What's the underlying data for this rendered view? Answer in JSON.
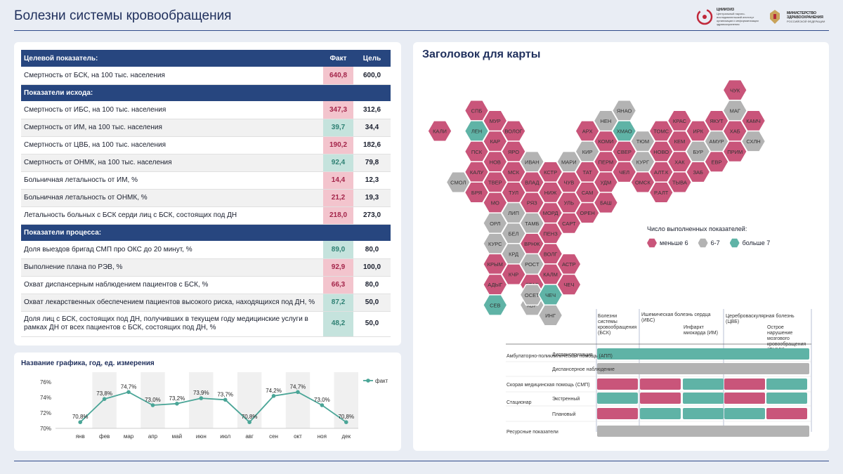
{
  "header": {
    "title": "Болезни системы кровообращения",
    "logo1": {
      "name": "ЦНИИОИЗ",
      "text": "Центральный научно-исследовательский институт организации и информатизации здравоохранения"
    },
    "logo2": {
      "text1": "МИНИСТЕРСТВО",
      "text2": "ЗДРАВООХРАНЕНИЯ",
      "text3": "РОССИЙСКОЙ ФЕДЕРАЦИИ"
    }
  },
  "kpi": {
    "col_fact": "Факт",
    "col_goal": "Цель",
    "target_header": "Целевой показатель:",
    "target": [
      {
        "label": "Смертность от БСК, на 100 тыс. населения",
        "fact": "640,8",
        "goal": "600,0",
        "status": "bad"
      }
    ],
    "outcome_header": "Показатели исхода:",
    "outcome": [
      {
        "label": "Смертность от ИБС, на 100 тыс. населения",
        "fact": "347,3",
        "goal": "312,6",
        "status": "bad"
      },
      {
        "label": "Смертность от ИМ, на 100 тыс. населения",
        "fact": "39,7",
        "goal": "34,4",
        "status": "good"
      },
      {
        "label": "Смертность от ЦВБ, на 100 тыс. населения",
        "fact": "190,2",
        "goal": "182,6",
        "status": "bad"
      },
      {
        "label": "Смертность от ОНМК, на 100 тыс. населения",
        "fact": "92,4",
        "goal": "79,8",
        "status": "good"
      },
      {
        "label": "Больничная летальность от ИМ, %",
        "fact": "14,4",
        "goal": "12,3",
        "status": "bad"
      },
      {
        "label": "Больничная летальность от ОНМК, %",
        "fact": "21,2",
        "goal": "19,3",
        "status": "bad"
      },
      {
        "label": "Летальность больных с БСК серди лиц с БСК, состоящих под ДН",
        "fact": "218,0",
        "goal": "273,0",
        "status": "bad"
      }
    ],
    "process_header": "Показатели процесса:",
    "process": [
      {
        "label": "Доля выездов бригад СМП про ОКС до 20 минут, %",
        "fact": "89,0",
        "goal": "80,0",
        "status": "good"
      },
      {
        "label": "Выполнение плана по РЭВ, %",
        "fact": "92,9",
        "goal": "100,0",
        "status": "bad"
      },
      {
        "label": "Охват диспансерным наблюдением пациентов с БСК, %",
        "fact": "66,3",
        "goal": "80,0",
        "status": "bad"
      },
      {
        "label": "Охват лекарственных обеспечением пациентов высокого риска, находящихся под ДН, %",
        "fact": "87,2",
        "goal": "50,0",
        "status": "good"
      },
      {
        "label": "Доля лиц с БСК, состоящих под ДН, получивших в текущем году медицинские услуги в рамках ДН от всех пациентов с БСК, состоящих под ДН, %",
        "fact": "48,2",
        "goal": "50,0",
        "status": "good"
      }
    ]
  },
  "chart_title": "Название графика, год, ед. измерения",
  "chart_data": {
    "type": "line",
    "categories": [
      "янв",
      "фев",
      "мар",
      "апр",
      "май",
      "июн",
      "июл",
      "авг",
      "сен",
      "окт",
      "ноя",
      "дек"
    ],
    "series": [
      {
        "name": "факт",
        "values": [
          70.8,
          73.8,
          74.7,
          73.0,
          73.2,
          73.9,
          73.7,
          70.8,
          74.2,
          74.7,
          73.0,
          70.8
        ],
        "labels": [
          "70,8%",
          "73,8%",
          "74,7%",
          "73,0%",
          "73,2%",
          "73,9%",
          "73,7%",
          "70,8%",
          "74,2%",
          "74,7%",
          "73,0%",
          "70,8%"
        ]
      }
    ],
    "yticks": [
      "70%",
      "72%",
      "74%",
      "76%"
    ],
    "ylim": [
      70,
      76
    ],
    "color": "#4aa597"
  },
  "map": {
    "title": "Заголовок для карты",
    "colors": {
      "low": "#c9557a",
      "mid": "#b3b3b3",
      "high": "#5fb3a6"
    },
    "regions": [
      {
        "n": "КАЛИ",
        "q": 0,
        "r": 4,
        "s": "low"
      },
      {
        "n": "СПБ",
        "q": 2,
        "r": 3,
        "s": "low"
      },
      {
        "n": "ЛЕН",
        "q": 2,
        "r": 4,
        "s": "high"
      },
      {
        "n": "ПСК",
        "q": 2,
        "r": 5,
        "s": "low"
      },
      {
        "n": "КАЛУ",
        "q": 2,
        "r": 6,
        "s": "low"
      },
      {
        "n": "БРЯ",
        "q": 2,
        "r": 7,
        "s": "low"
      },
      {
        "n": "СМОЛ",
        "q": 1,
        "r": 6,
        "s": "mid"
      },
      {
        "n": "МУР",
        "q": 3,
        "r": 3,
        "s": "low"
      },
      {
        "n": "КАР",
        "q": 3,
        "r": 4,
        "s": "low"
      },
      {
        "n": "НОВ",
        "q": 3,
        "r": 5,
        "s": "low"
      },
      {
        "n": "ТВЕР",
        "q": 3,
        "r": 6,
        "s": "low"
      },
      {
        "n": "МО",
        "q": 3,
        "r": 7,
        "s": "low"
      },
      {
        "n": "ОРЛ",
        "q": 3,
        "r": 8,
        "s": "mid"
      },
      {
        "n": "КУРС",
        "q": 3,
        "r": 9,
        "s": "mid"
      },
      {
        "n": "ВОЛОГ",
        "q": 4,
        "r": 4,
        "s": "low"
      },
      {
        "n": "ЯРО",
        "q": 4,
        "r": 5,
        "s": "low"
      },
      {
        "n": "МСК",
        "q": 4,
        "r": 6,
        "s": "low"
      },
      {
        "n": "ТУЛ",
        "q": 4,
        "r": 7,
        "s": "low"
      },
      {
        "n": "ЛИП",
        "q": 4,
        "r": 8,
        "s": "mid"
      },
      {
        "n": "БЕЛ",
        "q": 4,
        "r": 9,
        "s": "mid"
      },
      {
        "n": "КРД",
        "q": 4,
        "r": 10,
        "s": "mid"
      },
      {
        "n": "КЧР",
        "q": 4,
        "r": 11,
        "s": "low"
      },
      {
        "n": "КРЫМ",
        "q": 3,
        "r": 10,
        "s": "low"
      },
      {
        "n": "АДЫГ",
        "q": 3,
        "r": 11,
        "s": "low"
      },
      {
        "n": "СЕВ",
        "q": 3,
        "r": 12,
        "s": "high"
      },
      {
        "n": "ИВАН",
        "q": 5,
        "r": 5,
        "s": "mid"
      },
      {
        "n": "ВЛАД",
        "q": 5,
        "r": 6,
        "s": "low"
      },
      {
        "n": "РЯЗ",
        "q": 5,
        "r": 7,
        "s": "low"
      },
      {
        "n": "ТАМБ",
        "q": 5,
        "r": 8,
        "s": "mid"
      },
      {
        "n": "ВРНЖ",
        "q": 5,
        "r": 9,
        "s": "low"
      },
      {
        "n": "РОСТ",
        "q": 5,
        "r": 10,
        "s": "mid"
      },
      {
        "n": "СТАВ",
        "q": 5,
        "r": 11,
        "s": "low"
      },
      {
        "n": "КБР",
        "q": 5,
        "r": 12,
        "s": "mid"
      },
      {
        "n": "ОСЕТ",
        "q": 5,
        "r": 11.5,
        "s": "mid"
      },
      {
        "n": "КСТР",
        "q": 6,
        "r": 6,
        "s": "low"
      },
      {
        "n": "НИЖ",
        "q": 6,
        "r": 7,
        "s": "low"
      },
      {
        "n": "МОРД",
        "q": 6,
        "r": 8,
        "s": "low"
      },
      {
        "n": "ПЕНЗ",
        "q": 6,
        "r": 9,
        "s": "low"
      },
      {
        "n": "ВОЛГ",
        "q": 6,
        "r": 10,
        "s": "low"
      },
      {
        "n": "КАЛМ",
        "q": 6,
        "r": 11,
        "s": "low"
      },
      {
        "n": "ЧЕЧ",
        "q": 6,
        "r": 12,
        "s": "high"
      },
      {
        "n": "ИНГ",
        "q": 6,
        "r": 13,
        "s": "mid"
      },
      {
        "n": "МАРИ",
        "q": 7,
        "r": 5,
        "s": "mid"
      },
      {
        "n": "ЧУВ",
        "q": 7,
        "r": 6,
        "s": "low"
      },
      {
        "n": "УЛЬ",
        "q": 7,
        "r": 7,
        "s": "low"
      },
      {
        "n": "САРТ",
        "q": 7,
        "r": 8,
        "s": "low"
      },
      {
        "n": "АСТР",
        "q": 7,
        "r": 10,
        "s": "low"
      },
      {
        "n": "ЧЕЧ2",
        "q": 7,
        "r": 11,
        "s": "low"
      },
      {
        "n": "АРХ",
        "q": 8,
        "r": 4,
        "s": "low"
      },
      {
        "n": "КИР",
        "q": 8,
        "r": 5,
        "s": "mid"
      },
      {
        "n": "ТАТ",
        "q": 8,
        "r": 6,
        "s": "low"
      },
      {
        "n": "САМ",
        "q": 8,
        "r": 7,
        "s": "low"
      },
      {
        "n": "ОРЕН",
        "q": 8,
        "r": 8,
        "s": "low"
      },
      {
        "n": "НЕН",
        "q": 9,
        "r": 3,
        "s": "mid"
      },
      {
        "n": "КОМИ",
        "q": 9,
        "r": 4,
        "s": "low"
      },
      {
        "n": "ПЕРМ",
        "q": 9,
        "r": 5,
        "s": "low"
      },
      {
        "n": "УДМ",
        "q": 9,
        "r": 6,
        "s": "low"
      },
      {
        "n": "БАШ",
        "q": 9,
        "r": 7,
        "s": "low"
      },
      {
        "n": "ЯНАО",
        "q": 10,
        "r": 3,
        "s": "mid"
      },
      {
        "n": "ХМАО",
        "q": 10,
        "r": 4,
        "s": "high"
      },
      {
        "n": "СВЕР",
        "q": 10,
        "r": 5,
        "s": "low"
      },
      {
        "n": "ЧЕЛ",
        "q": 10,
        "r": 6,
        "s": "low"
      },
      {
        "n": "ТЮМ",
        "q": 11,
        "r": 4,
        "s": "mid"
      },
      {
        "n": "КУРГ",
        "q": 11,
        "r": 5,
        "s": "mid"
      },
      {
        "n": "ОМСК",
        "q": 11,
        "r": 6,
        "s": "low"
      },
      {
        "n": "ТОМС",
        "q": 12,
        "r": 4,
        "s": "low"
      },
      {
        "n": "НОВО",
        "q": 12,
        "r": 5,
        "s": "low"
      },
      {
        "n": "АЛТ.К",
        "q": 12,
        "r": 6,
        "s": "low"
      },
      {
        "n": "Р.АЛТ",
        "q": 12,
        "r": 7,
        "s": "low"
      },
      {
        "n": "КРАС",
        "q": 13,
        "r": 3,
        "s": "low"
      },
      {
        "n": "КЕМ",
        "q": 13,
        "r": 4,
        "s": "low"
      },
      {
        "n": "ХАК",
        "q": 13,
        "r": 5,
        "s": "low"
      },
      {
        "n": "ТЫВА",
        "q": 13,
        "r": 6,
        "s": "low"
      },
      {
        "n": "ИРК",
        "q": 14,
        "r": 4,
        "s": "low"
      },
      {
        "n": "БУР",
        "q": 14,
        "r": 5,
        "s": "mid"
      },
      {
        "n": "ЗАБ",
        "q": 14,
        "r": 6,
        "s": "low"
      },
      {
        "n": "ЯКУТ",
        "q": 15,
        "r": 3,
        "s": "low"
      },
      {
        "n": "АМУР",
        "q": 15,
        "r": 4,
        "s": "mid"
      },
      {
        "n": "ЕВР",
        "q": 15,
        "r": 5,
        "s": "low"
      },
      {
        "n": "ЧУК",
        "q": 16,
        "r": 2,
        "s": "low"
      },
      {
        "n": "МАГ",
        "q": 16,
        "r": 3,
        "s": "mid"
      },
      {
        "n": "ХАБ",
        "q": 16,
        "r": 4,
        "s": "low"
      },
      {
        "n": "ПРИМ",
        "q": 16,
        "r": 5,
        "s": "low"
      },
      {
        "n": "КАМЧ",
        "q": 17,
        "r": 3,
        "s": "low"
      },
      {
        "n": "СХЛН",
        "q": 17,
        "r": 4,
        "s": "mid"
      }
    ],
    "legend_title": "Число выполненных показателей:",
    "legend": [
      {
        "label": "меньше 6",
        "s": "low"
      },
      {
        "label": "6-7",
        "s": "mid"
      },
      {
        "label": "больше 7",
        "s": "high"
      }
    ]
  },
  "matrix": {
    "cols": [
      "Болезни системы кровообращения (БСК)",
      "Ишемическая болезнь сердца (ИБС)",
      "Инфаркт миокарда (ИМ)",
      "Цереброваскулярная болезнь (ЦВБ)",
      "Острое нарушение мозгового кровообращения (ОНМК)"
    ],
    "rows": [
      {
        "group": "Амбулаторно-поликлиническая помощь (АПП)",
        "sub": "Диспансеризация",
        "cells": [
          "high-full"
        ]
      },
      {
        "group": "",
        "sub": "Диспансерное наблюдение",
        "cells": [
          "mid-full"
        ]
      },
      {
        "group": "Скорая медицинская помощь (СМП)",
        "sub": "",
        "cells": [
          "low",
          "low",
          "high",
          "low",
          "high"
        ]
      },
      {
        "group": "Стационар",
        "sub": "Экстренный",
        "cells": [
          "high",
          "low",
          "high",
          "low",
          "high"
        ]
      },
      {
        "group": "",
        "sub": "Плановый",
        "cells": [
          "low",
          "high",
          "high",
          "high",
          "low"
        ]
      },
      {
        "group": "Ресурсные показатели",
        "sub": "",
        "cells": [
          "mid-full"
        ]
      }
    ]
  }
}
